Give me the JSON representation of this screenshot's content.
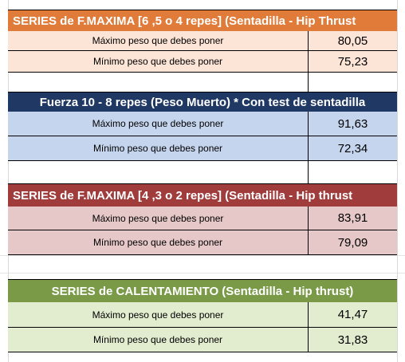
{
  "sections": [
    {
      "title": "SERIES de F.MAXIMA [6 ,5 o 4 repes]   (Sentadilla - Hip Thrust",
      "header_color": "#e07b39",
      "row_color": "#fce4d6",
      "rows": [
        {
          "label": "Máximo peso que debes poner",
          "value": "80,05"
        },
        {
          "label": "Mínimo peso que debes poner",
          "value": "75,23"
        }
      ]
    },
    {
      "title": "Fuerza  10 - 8 repes  (Peso Muerto) * Con test de sentadilla",
      "header_color": "#203864",
      "row_color": "#c5d5ee",
      "rows": [
        {
          "label": "Máximo peso que debes poner",
          "value": "91,63"
        },
        {
          "label": "Mínimo peso que debes poner",
          "value": "72,34"
        }
      ]
    },
    {
      "title": "SERIES de F.MAXIMA  [4 ,3 o 2 repes]  (Sentadilla - Hip thrust",
      "header_color": "#a03c3c",
      "row_color": "#e6c8c8",
      "rows": [
        {
          "label": "Máximo peso que debes poner",
          "value": "83,91"
        },
        {
          "label": "Mínimo peso que debes poner",
          "value": "79,09"
        }
      ]
    },
    {
      "title": "SERIES de CALENTAMIENTO  (Sentadilla - Hip thrust)",
      "header_color": "#7a9a48",
      "row_color": "#e2eccf",
      "rows": [
        {
          "label": "Máximo peso que debes poner",
          "value": "41,47"
        },
        {
          "label": "Mínimo peso que debes poner",
          "value": "31,83"
        }
      ]
    }
  ]
}
